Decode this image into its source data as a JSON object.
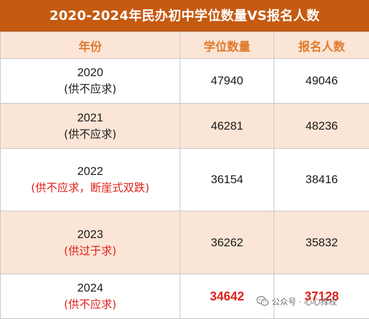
{
  "title": "2020-2024年民办初中学位数量VS报名人数",
  "headers": [
    "年份",
    "学位数量",
    "报名人数"
  ],
  "rows": [
    {
      "year": "2020",
      "note": "(供不应求)",
      "seats": "47940",
      "applicants": "49046"
    },
    {
      "year": "2021",
      "note": "(供不应求)",
      "seats": "46281",
      "applicants": "48236"
    },
    {
      "year": "2022",
      "note": "(供不应求，断崖式双跌)",
      "seats": "36154",
      "applicants": "38416"
    },
    {
      "year": "2023",
      "note": "(供过于求)",
      "seats": "36262",
      "applicants": "35832"
    },
    {
      "year": "2024",
      "note": "(供不应求)",
      "seats": "34642",
      "applicants": "37128"
    }
  ],
  "colors": {
    "title_bg": "#c55a11",
    "header_bg": "#fbe5d6",
    "header_text": "#e07a2c",
    "highlight_red": "#e0201a"
  },
  "watermark": {
    "icon": "wechat-icon",
    "text": "公众号 · 心心择校"
  }
}
